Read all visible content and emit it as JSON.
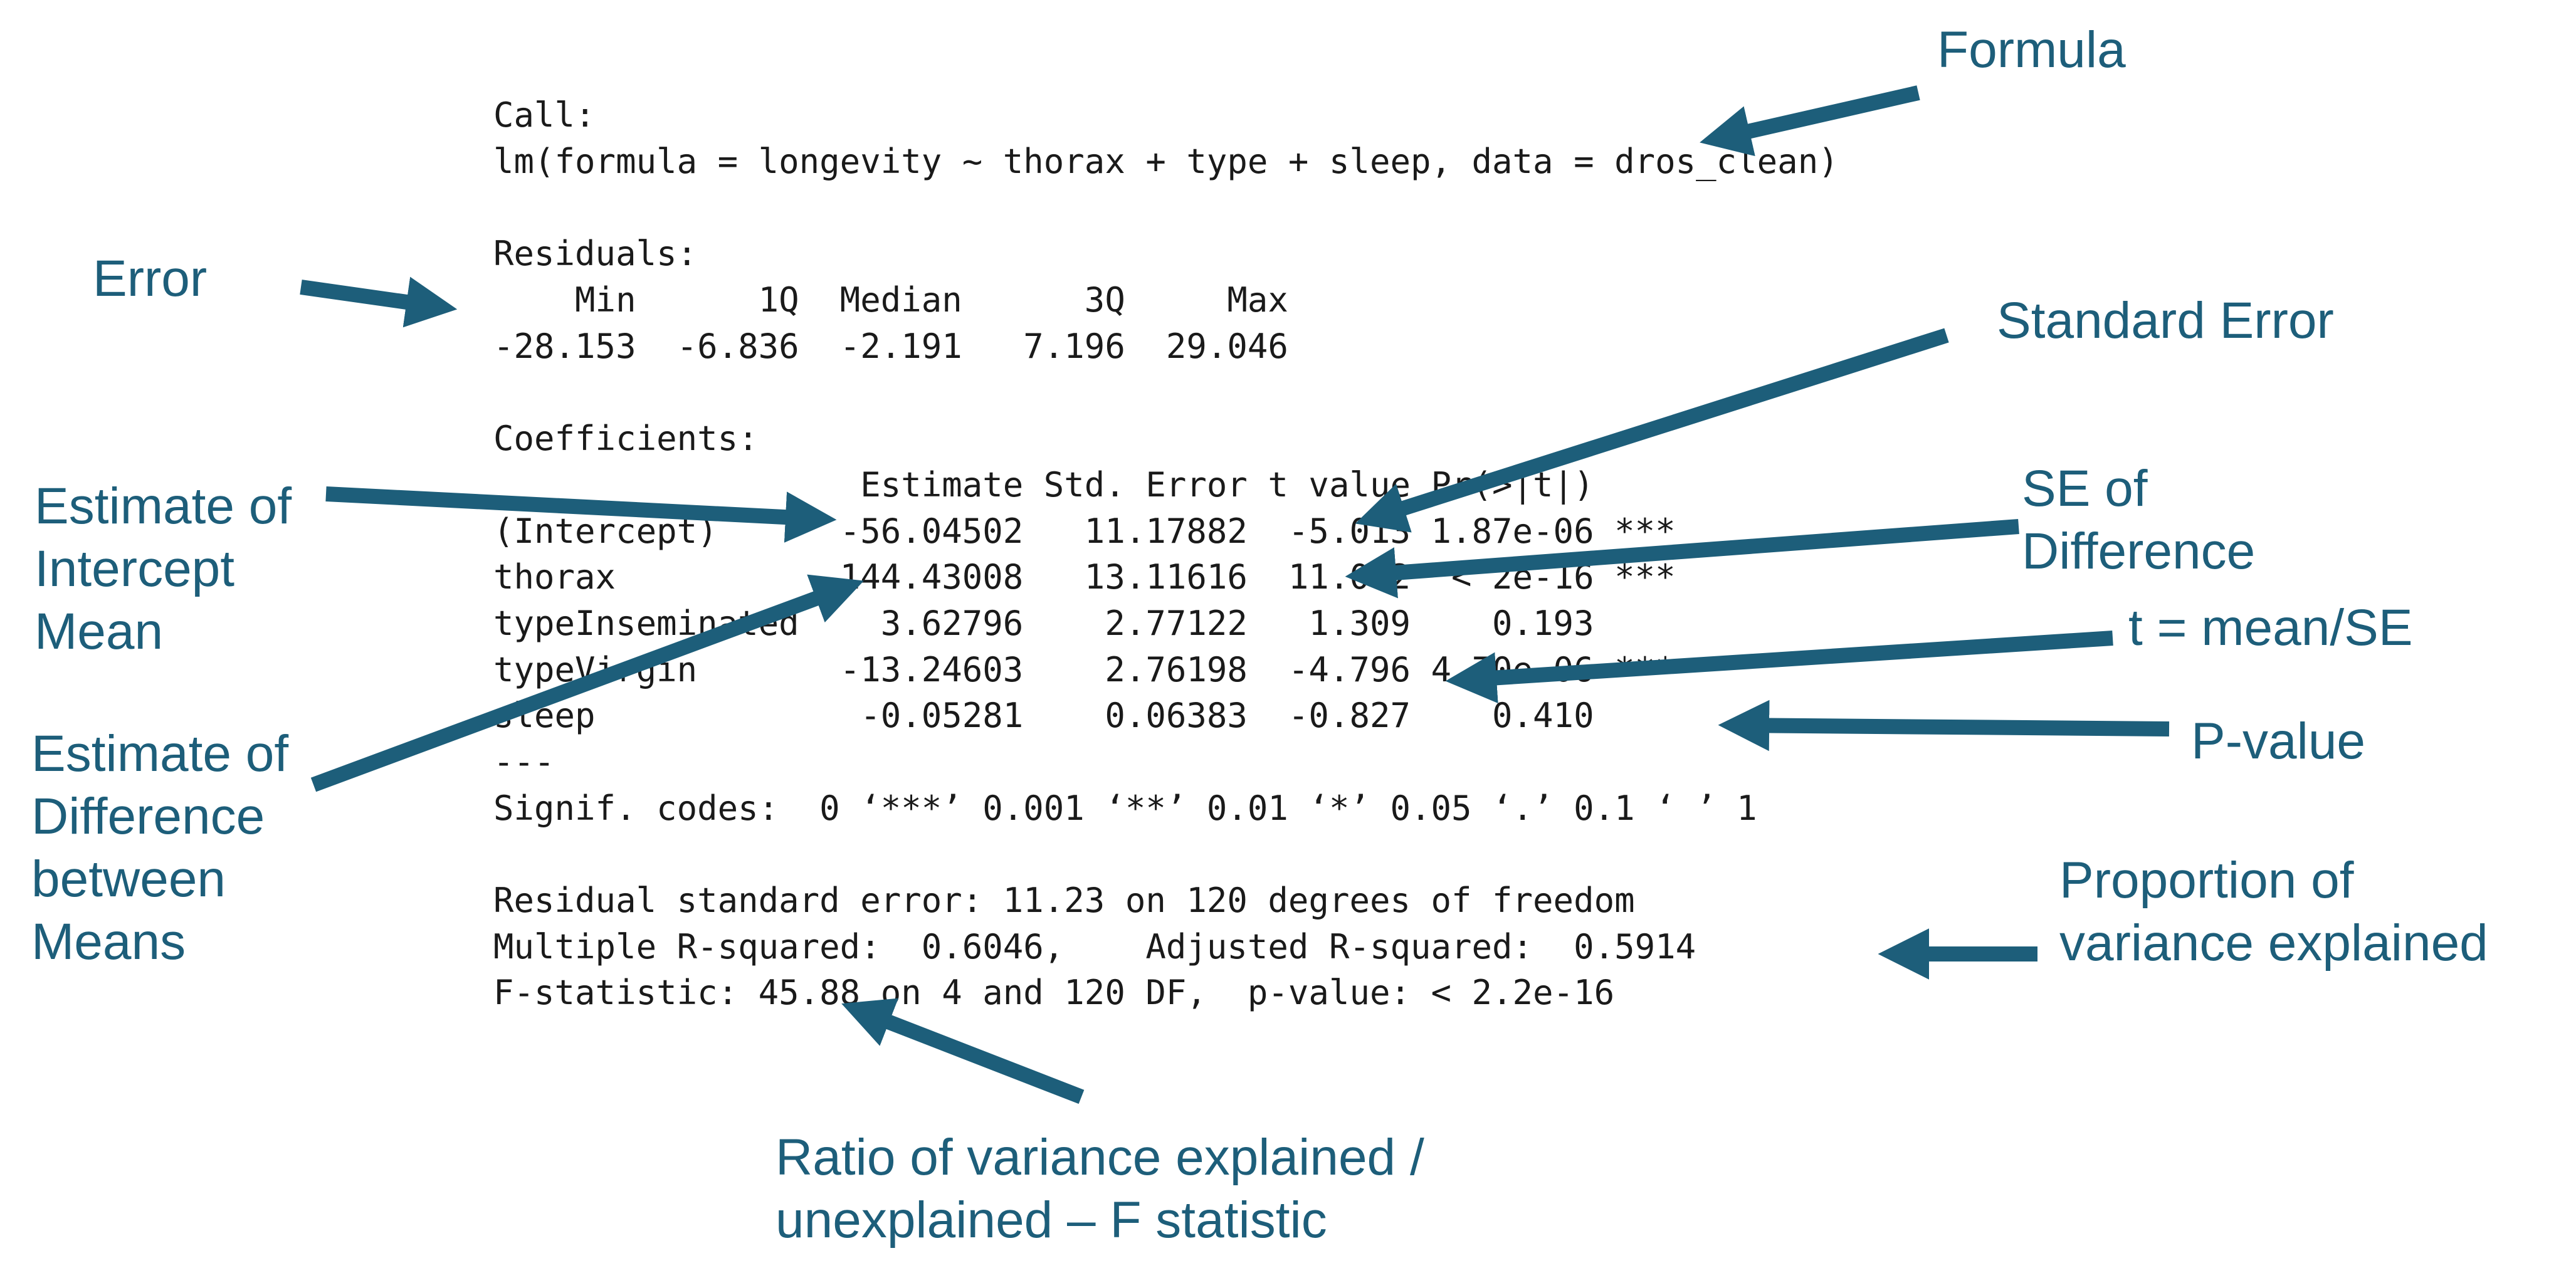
{
  "colors": {
    "annotation": "#1d5e7a",
    "code": "#1a1a1a",
    "background": "#ffffff"
  },
  "output": {
    "call_label": "Call:",
    "call": "lm(formula = longevity ~ thorax + type + sleep, data = dros_clean)",
    "residuals_label": "Residuals:",
    "residuals_header": "    Min      1Q  Median      3Q     Max ",
    "residuals_values": "-28.153  -6.836  -2.191   7.196  29.046 ",
    "coef_label": "Coefficients:",
    "coef_header": "                  Estimate Std. Error t value Pr(>|t|)    ",
    "coef_rows": [
      "(Intercept)      -56.04502   11.17882  -5.013 1.87e-06 ***",
      "thorax           144.43008   13.11616  11.012  < 2e-16 ***",
      "typeInseminated    3.62796    2.77122   1.309    0.193    ",
      "typeVirgin       -13.24603    2.76198  -4.796 4.70e-06 ***",
      "sleep             -0.05281    0.06383  -0.827    0.410    "
    ],
    "separator": "---",
    "signif": "Signif. codes:  0 ‘***’ 0.001 ‘**’ 0.01 ‘*’ 0.05 ‘.’ 0.1 ‘ ’ 1",
    "rse": "Residual standard error: 11.23 on 120 degrees of freedom",
    "r2": "Multiple R-squared:  0.6046,    Adjusted R-squared:  0.5914 ",
    "fstat": "F-statistic: 45.88 on 4 and 120 DF,  p-value: < 2.2e-16"
  },
  "annotations": {
    "formula": "Formula",
    "error": "Error",
    "standard_error": "Standard Error",
    "estimate_intercept": "Estimate of\nIntercept\nMean",
    "se_difference": "SE of\nDifference",
    "t_value": "t = mean/SE",
    "p_value": "P-value",
    "estimate_difference": "Estimate of\nDifference\nbetween\nMeans",
    "proportion_variance": "Proportion of\nvariance explained",
    "f_ratio": "Ratio of variance explained /\nunexplained – F statistic"
  }
}
